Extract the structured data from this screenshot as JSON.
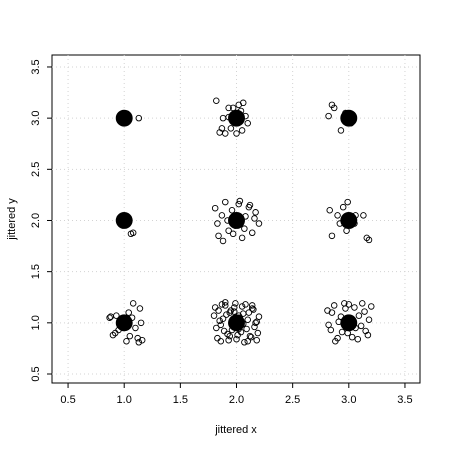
{
  "chart_data": {
    "type": "scatter",
    "xlabel": "jittered x",
    "ylabel": "jittered y",
    "xlim": [
      0.357,
      3.634
    ],
    "ylim": [
      0.412,
      3.617
    ],
    "xticks": [
      0.5,
      {
        "value": 1,
        "label": "1.0"
      },
      1.5,
      {
        "value": 2,
        "label": "2.0"
      },
      2.5,
      {
        "value": 3,
        "label": "3.0"
      },
      3.5
    ],
    "yticks": [
      0.5,
      {
        "value": 1,
        "label": "1.0"
      },
      1.5,
      {
        "value": 2,
        "label": "2.0"
      },
      2.5,
      {
        "value": 3,
        "label": "3.0"
      },
      3.5
    ],
    "grid": true,
    "series": [
      {
        "color": "#000000",
        "marker": "open",
        "x": [
          1.13,
          1.06,
          1.08,
          2.85,
          2.87,
          2.82,
          2.93,
          3.02,
          2.97,
          2.83,
          2.9,
          2.95,
          2.99,
          3.06,
          3.13,
          3.16,
          3.18,
          2.85,
          2.98,
          3.05,
          2.92,
          1.82,
          1.87,
          1.85,
          1.9,
          1.93,
          1.97,
          2.02,
          2.06,
          2.04,
          2.08,
          1.95,
          2.0,
          2.05,
          1.88,
          1.93,
          2.1,
          1.97,
          2.01,
          1.81,
          1.84,
          1.87,
          1.9,
          1.93,
          1.96,
          1.99,
          2.02,
          2.05,
          2.08,
          2.11,
          2.14,
          2.17,
          2.2,
          1.83,
          1.88,
          1.92,
          1.97,
          2.03,
          2.07,
          2.12,
          2.16,
          0.87,
          0.9,
          0.93,
          0.95,
          0.98,
          1.02,
          1.05,
          1.08,
          1.1,
          1.14,
          1.16,
          1.13,
          0.88,
          0.92,
          1.04,
          1.07,
          0.97,
          1.0,
          1.12,
          1.15,
          1.81,
          1.83,
          1.85,
          1.87,
          1.89,
          1.91,
          1.93,
          1.95,
          1.97,
          1.99,
          2.01,
          2.03,
          2.05,
          2.07,
          2.09,
          2.11,
          2.13,
          2.15,
          2.17,
          2.19,
          1.82,
          1.84,
          1.86,
          1.88,
          1.9,
          1.92,
          1.94,
          1.96,
          1.98,
          2.0,
          2.02,
          2.04,
          2.06,
          2.08,
          2.1,
          2.12,
          2.14,
          2.16,
          2.18,
          2.2,
          1.8,
          1.86,
          1.9,
          1.94,
          1.98,
          2.02,
          2.06,
          2.1,
          2.14,
          2.18,
          2.81,
          2.84,
          2.87,
          2.9,
          2.93,
          2.96,
          2.99,
          3.02,
          3.05,
          3.08,
          3.11,
          3.14,
          3.17,
          3.2,
          2.82,
          2.85,
          2.88,
          2.91,
          2.94,
          2.97,
          3.0,
          3.03,
          3.06,
          3.09,
          3.12,
          3.15,
          3.18
        ],
        "values": [
          3.0,
          1.87,
          1.88,
          3.13,
          3.1,
          3.02,
          2.88,
          2.95,
          3.05,
          2.1,
          2.05,
          2.13,
          2.18,
          2.05,
          2.05,
          1.83,
          1.81,
          1.85,
          1.9,
          1.97,
          1.97,
          3.17,
          2.9,
          2.86,
          2.85,
          3.1,
          3.1,
          3.13,
          3.15,
          3.07,
          3.02,
          2.9,
          2.85,
          2.88,
          3.0,
          3.01,
          2.95,
          2.97,
          3.05,
          2.12,
          1.85,
          2.05,
          2.18,
          1.9,
          2.1,
          1.95,
          2.16,
          1.83,
          2.04,
          2.13,
          1.88,
          2.08,
          1.97,
          1.97,
          1.8,
          2.0,
          1.87,
          2.19,
          1.92,
          2.15,
          2.02,
          1.05,
          0.88,
          1.07,
          0.93,
          1.04,
          0.82,
          0.87,
          1.19,
          0.95,
          1.14,
          0.83,
          0.81,
          1.06,
          0.9,
          1.1,
          1.05,
          0.97,
          1.02,
          0.85,
          1.0,
          1.15,
          0.85,
          1.02,
          1.18,
          0.92,
          1.08,
          0.83,
          1.12,
          0.97,
          1.19,
          0.88,
          1.05,
          1.16,
          0.81,
          0.94,
          1.1,
          0.86,
          1.13,
          1.0,
          0.9,
          0.95,
          1.12,
          0.82,
          1.04,
          1.17,
          0.89,
          1.1,
          0.93,
          1.15,
          0.84,
          1.07,
          0.91,
          0.99,
          1.18,
          1.03,
          0.87,
          1.14,
          0.96,
          0.83,
          1.06,
          1.07,
          0.98,
          1.2,
          0.87,
          1.11,
          0.94,
          1.09,
          0.82,
          1.17,
          1.01,
          1.12,
          0.93,
          1.17,
          0.85,
          1.06,
          1.19,
          0.9,
          1.03,
          1.15,
          0.84,
          0.97,
          1.11,
          0.88,
          1.16,
          0.98,
          1.1,
          0.82,
          1.01,
          0.91,
          1.14,
          1.18,
          0.86,
          0.95,
          1.07,
          1.19,
          0.92,
          1.03
        ]
      },
      {
        "color": "#000000",
        "marker": "filled",
        "x": [
          1,
          2,
          3,
          1,
          2,
          3,
          1,
          2,
          3
        ],
        "values": [
          1,
          1,
          1,
          2,
          2,
          2,
          3,
          3,
          3
        ]
      }
    ]
  }
}
